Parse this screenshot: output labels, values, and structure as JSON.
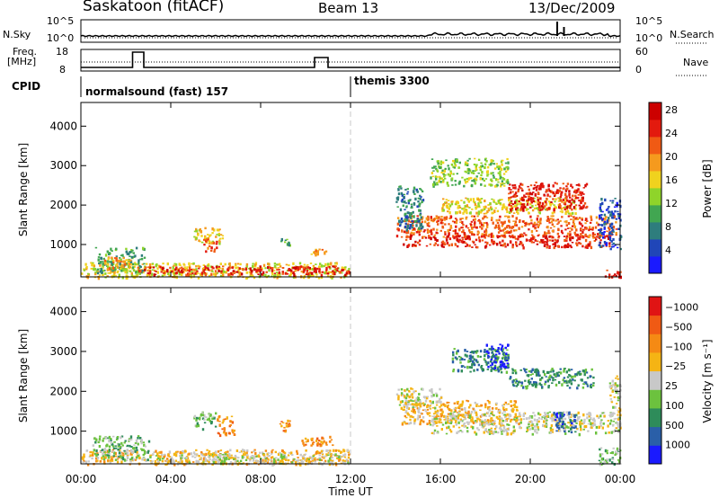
{
  "header": {
    "station": "Saskatoon (fitACF)",
    "beam": "Beam 13",
    "date": "13/Dec/2009"
  },
  "strips": {
    "nsky_label": "N.Sky",
    "nsky_ticks": [
      "10^5",
      "10^0"
    ],
    "nsearch_label": "N.Search",
    "nsearch_ticks": [
      "10^5",
      "10^0"
    ],
    "freq_label_1": "Freq.",
    "freq_label_2": "[MHz]",
    "freq_ticks": [
      "18",
      "8"
    ],
    "nave_label": "Nave",
    "nave_ticks": [
      "60",
      "0"
    ],
    "cpid_label": "CPID",
    "cpid_programs": [
      {
        "name": "normalsound (fast) 157",
        "start_hour": 0
      },
      {
        "name": "themis 3300",
        "start_hour": 12
      }
    ]
  },
  "chart_data": [
    {
      "type": "heatmap",
      "title": "",
      "xlabel": "Time UT",
      "ylabel": "Slant Range [km]",
      "x_ticks": [
        "00:00",
        "04:00",
        "08:00",
        "12:00",
        "16:00",
        "20:00",
        "00:00"
      ],
      "x_tick_hours": [
        0,
        4,
        8,
        12,
        16,
        20,
        24
      ],
      "y_ticks": [
        1000,
        2000,
        3000,
        4000
      ],
      "ylim": [
        180,
        4600
      ],
      "xlim": [
        0,
        24
      ],
      "colorbar": {
        "label": "Power [dB]",
        "tick_labels": [
          "4",
          "8",
          "12",
          "16",
          "20",
          "24",
          "28"
        ],
        "colors": [
          "#1a1aff",
          "#2046b8",
          "#2e7d7d",
          "#41a651",
          "#8fd42a",
          "#f0d21e",
          "#f59a1e",
          "#f05a14",
          "#e31a0e",
          "#cc0000"
        ]
      },
      "regions": [
        {
          "t0": 0.0,
          "t1": 11.9,
          "r0": 180,
          "r1": 560,
          "level": 5
        },
        {
          "t0": 0.6,
          "t1": 2.8,
          "r0": 300,
          "r1": 950,
          "level": 3
        },
        {
          "t0": 1.0,
          "t1": 2.2,
          "r0": 400,
          "r1": 700,
          "level": 6
        },
        {
          "t0": 2.5,
          "t1": 11.9,
          "r0": 250,
          "r1": 470,
          "level": 8
        },
        {
          "t0": 5.0,
          "t1": 6.3,
          "r0": 1050,
          "r1": 1450,
          "level": 5
        },
        {
          "t0": 5.4,
          "t1": 6.1,
          "r0": 850,
          "r1": 1200,
          "level": 7
        },
        {
          "t0": 8.8,
          "t1": 9.3,
          "r0": 1000,
          "r1": 1200,
          "level": 3
        },
        {
          "t0": 10.0,
          "t1": 11.0,
          "r0": 700,
          "r1": 900,
          "level": 6
        },
        {
          "t0": 14.0,
          "t1": 23.8,
          "r0": 1200,
          "r1": 1750,
          "level": 7
        },
        {
          "t0": 14.3,
          "t1": 23.5,
          "r0": 950,
          "r1": 1250,
          "level": 8
        },
        {
          "t0": 14.0,
          "t1": 15.2,
          "r0": 1400,
          "r1": 2500,
          "level": 2
        },
        {
          "t0": 16.0,
          "t1": 22.0,
          "r0": 1800,
          "r1": 2200,
          "level": 5
        },
        {
          "t0": 19.0,
          "t1": 22.5,
          "r0": 1900,
          "r1": 2600,
          "level": 8
        },
        {
          "t0": 15.5,
          "t1": 19.0,
          "r0": 2500,
          "r1": 3200,
          "level": 4
        },
        {
          "t0": 23.0,
          "t1": 24.0,
          "r0": 900,
          "r1": 2200,
          "level": 1
        },
        {
          "t0": 23.3,
          "t1": 24.0,
          "r0": 180,
          "r1": 400,
          "level": 8
        }
      ]
    },
    {
      "type": "heatmap",
      "title": "",
      "xlabel": "Time UT",
      "ylabel": "Slant Range [km]",
      "x_ticks": [
        "00:00",
        "04:00",
        "08:00",
        "12:00",
        "16:00",
        "20:00",
        "00:00"
      ],
      "x_tick_hours": [
        0,
        4,
        8,
        12,
        16,
        20,
        24
      ],
      "y_ticks": [
        1000,
        2000,
        3000,
        4000
      ],
      "ylim": [
        180,
        4600
      ],
      "xlim": [
        0,
        24
      ],
      "colorbar": {
        "label": "Velocity [m s⁻¹]",
        "tick_labels": [
          "1000",
          "500",
          "100",
          "25",
          "−25",
          "−100",
          "−500",
          "−1000"
        ],
        "colors": [
          "#1a1aff",
          "#2a5fa8",
          "#2e8c5a",
          "#6cc23e",
          "#c8c8c8",
          "#f5b414",
          "#f58a14",
          "#f05a14",
          "#e01414"
        ]
      },
      "regions": [
        {
          "t0": 0.0,
          "t1": 11.9,
          "r0": 180,
          "r1": 560,
          "level": 5
        },
        {
          "t0": 0.5,
          "t1": 3.0,
          "r0": 300,
          "r1": 900,
          "level": 3
        },
        {
          "t0": 3.0,
          "t1": 11.9,
          "r0": 200,
          "r1": 450,
          "level": 4
        },
        {
          "t0": 5.0,
          "t1": 6.0,
          "r0": 1050,
          "r1": 1500,
          "level": 3
        },
        {
          "t0": 6.0,
          "t1": 6.8,
          "r0": 900,
          "r1": 1400,
          "level": 6
        },
        {
          "t0": 8.8,
          "t1": 9.3,
          "r0": 1000,
          "r1": 1300,
          "level": 6
        },
        {
          "t0": 9.8,
          "t1": 11.2,
          "r0": 650,
          "r1": 900,
          "level": 6
        },
        {
          "t0": 14.2,
          "t1": 19.5,
          "r0": 1200,
          "r1": 1800,
          "level": 5
        },
        {
          "t0": 15.5,
          "t1": 24.0,
          "r0": 950,
          "r1": 1500,
          "level": 4
        },
        {
          "t0": 14.0,
          "t1": 16.0,
          "r0": 1600,
          "r1": 2100,
          "level": 4
        },
        {
          "t0": 19.0,
          "t1": 22.8,
          "r0": 2100,
          "r1": 2600,
          "level": 2
        },
        {
          "t0": 16.5,
          "t1": 19.0,
          "r0": 2500,
          "r1": 3100,
          "level": 2
        },
        {
          "t0": 18.0,
          "t1": 19.0,
          "r0": 2600,
          "r1": 3200,
          "level": 0
        },
        {
          "t0": 21.0,
          "t1": 22.0,
          "r0": 1000,
          "r1": 1500,
          "level": 1
        },
        {
          "t0": 23.0,
          "t1": 24.0,
          "r0": 180,
          "r1": 600,
          "level": 3
        },
        {
          "t0": 23.5,
          "t1": 24.0,
          "r0": 1000,
          "r1": 2400,
          "level": 4
        }
      ]
    }
  ]
}
